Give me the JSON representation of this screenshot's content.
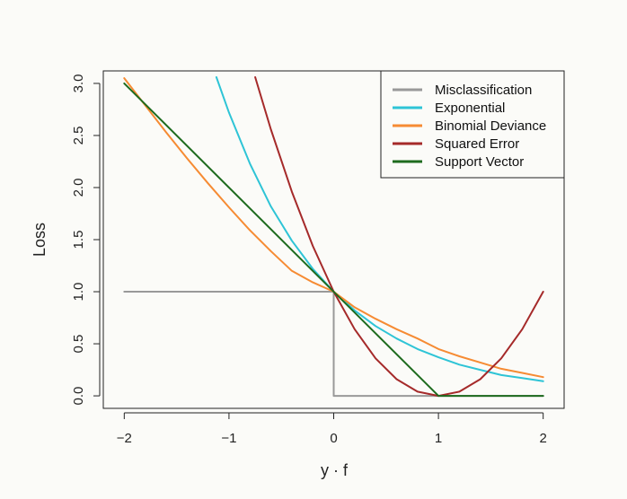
{
  "chart_data": {
    "type": "line",
    "xlabel": "y · f",
    "ylabel": "Loss",
    "xlim": [
      -2.2,
      2.2
    ],
    "ylim": [
      -0.12,
      3.12
    ],
    "x_ticks": [
      -2,
      -1,
      0,
      1,
      2
    ],
    "x_tick_labels": [
      "−2",
      "−1",
      "0",
      "1",
      "2"
    ],
    "y_ticks": [
      0.0,
      0.5,
      1.0,
      1.5,
      2.0,
      2.5,
      3.0
    ],
    "y_tick_labels": [
      "0.0",
      "0.5",
      "1.0",
      "1.5",
      "2.0",
      "2.5",
      "3.0"
    ],
    "legend_position": "top-right",
    "grid": false,
    "series": [
      {
        "name": "Misclassification",
        "color": "#999999",
        "x": [
          -2,
          0,
          0,
          2
        ],
        "y": [
          1,
          1,
          0,
          0
        ]
      },
      {
        "name": "Exponential",
        "color": "#2ec4d6",
        "x": [
          -1.12,
          -1.0,
          -0.8,
          -0.6,
          -0.4,
          -0.2,
          0.0,
          0.2,
          0.4,
          0.6,
          0.8,
          1.0,
          1.2,
          1.4,
          1.6,
          1.8,
          2.0
        ],
        "y": [
          3.06,
          2.72,
          2.23,
          1.82,
          1.49,
          1.22,
          1.0,
          0.82,
          0.67,
          0.55,
          0.45,
          0.37,
          0.3,
          0.25,
          0.2,
          0.17,
          0.14
        ]
      },
      {
        "name": "Binomial Deviance",
        "color": "#f68b33",
        "x": [
          -2.0,
          -1.8,
          -1.6,
          -1.4,
          -1.2,
          -1.0,
          -0.8,
          -0.6,
          -0.4,
          -0.2,
          0.0,
          0.2,
          0.4,
          0.6,
          0.8,
          1.0,
          1.2,
          1.4,
          1.6,
          1.8,
          2.0
        ],
        "y": [
          3.05,
          2.79,
          2.53,
          2.28,
          2.04,
          1.81,
          1.59,
          1.39,
          1.2,
          1.09,
          1.0,
          0.85,
          0.74,
          0.64,
          0.55,
          0.45,
          0.38,
          0.32,
          0.26,
          0.22,
          0.18
        ]
      },
      {
        "name": "Squared Error",
        "color": "#a52a2a",
        "x": [
          -0.75,
          -0.6,
          -0.4,
          -0.2,
          0.0,
          0.2,
          0.4,
          0.6,
          0.8,
          1.0,
          1.2,
          1.4,
          1.6,
          1.8,
          2.0
        ],
        "y": [
          3.06,
          2.56,
          1.96,
          1.44,
          1.0,
          0.64,
          0.36,
          0.16,
          0.04,
          0.0,
          0.04,
          0.16,
          0.36,
          0.64,
          1.0
        ]
      },
      {
        "name": "Support Vector",
        "color": "#1e6b1e",
        "x": [
          -2,
          1,
          2
        ],
        "y": [
          3,
          0,
          0
        ]
      }
    ]
  }
}
